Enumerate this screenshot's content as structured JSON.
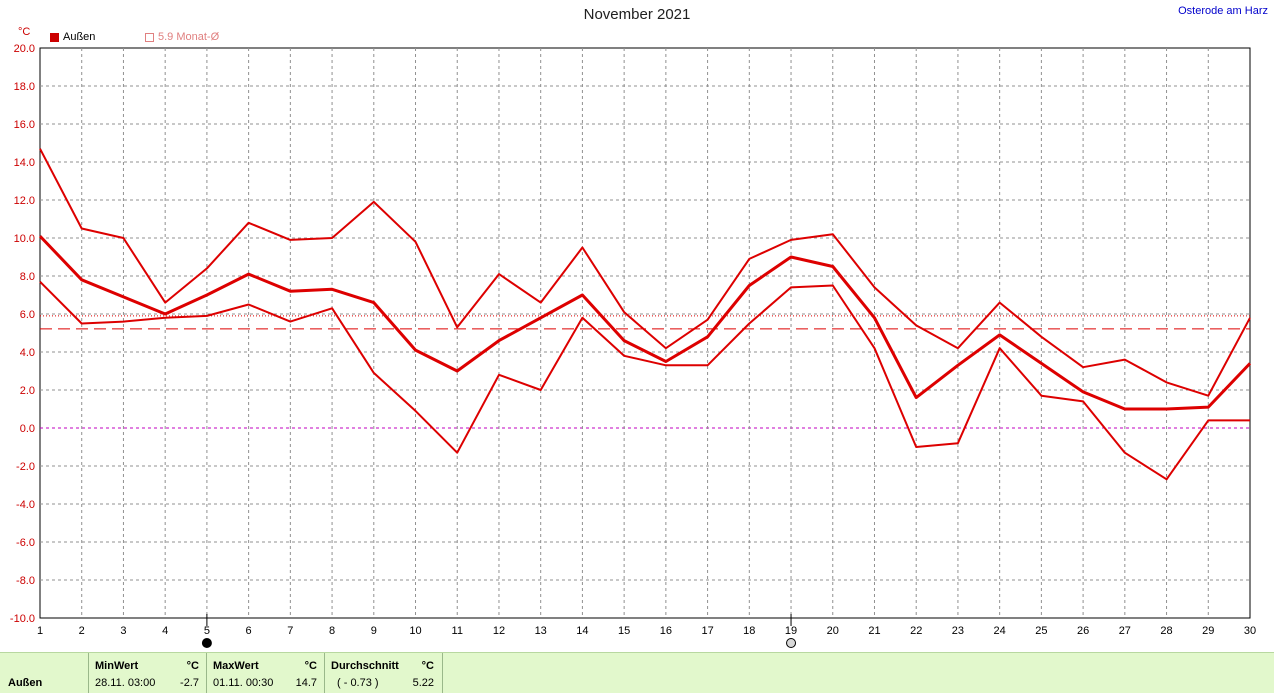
{
  "header": {
    "title": "November 2021",
    "location": "Osterode am Harz",
    "unit": "°C"
  },
  "legend": {
    "series_label": "Außen",
    "monthly_avg_label": "5.9 Monat-Ø"
  },
  "colors": {
    "series": "#dd0000",
    "avg_line": "#dd0000",
    "grid": "#909090",
    "zero_line": "#c000c0",
    "footer_bg": "#e2f8cc"
  },
  "chart_data": {
    "type": "line",
    "title": "November 2021",
    "ylabel": "°C",
    "ylim": [
      -10,
      20
    ],
    "xlim": [
      1,
      30
    ],
    "grid": true,
    "legend": "top-left",
    "x": [
      1,
      2,
      3,
      4,
      5,
      6,
      7,
      8,
      9,
      10,
      11,
      12,
      13,
      14,
      15,
      16,
      17,
      18,
      19,
      20,
      21,
      22,
      23,
      24,
      25,
      26,
      27,
      28,
      29,
      30
    ],
    "y_ticks": [
      "20.0",
      "18.0",
      "16.0",
      "14.0",
      "12.0",
      "10.0",
      "8.0",
      "6.0",
      "4.0",
      "2.0",
      "0.0",
      "-2.0",
      "-4.0",
      "-6.0",
      "-8.0",
      "-10.0"
    ],
    "series": [
      {
        "name": "max",
        "values": [
          14.7,
          10.5,
          10.0,
          6.6,
          8.4,
          10.8,
          9.9,
          10.0,
          11.9,
          9.8,
          5.3,
          8.1,
          6.6,
          9.5,
          6.1,
          4.2,
          5.7,
          8.9,
          9.9,
          10.2,
          7.4,
          5.4,
          4.2,
          6.6,
          4.8,
          3.2,
          3.6,
          2.4,
          1.7,
          5.8
        ],
        "thick": false
      },
      {
        "name": "avg",
        "values": [
          10.1,
          7.8,
          6.9,
          6.0,
          7.0,
          8.1,
          7.2,
          7.3,
          6.6,
          4.1,
          3.0,
          4.6,
          5.8,
          7.0,
          4.6,
          3.5,
          4.8,
          7.5,
          9.0,
          8.5,
          5.8,
          1.6,
          3.3,
          4.9,
          3.4,
          1.9,
          1.0,
          1.0,
          1.1,
          3.4
        ],
        "thick": true
      },
      {
        "name": "min",
        "values": [
          7.7,
          5.5,
          5.6,
          5.8,
          5.9,
          6.5,
          5.6,
          6.3,
          2.9,
          0.9,
          -1.3,
          2.8,
          2.0,
          5.8,
          3.8,
          3.3,
          3.3,
          5.5,
          7.4,
          7.5,
          4.2,
          -1.0,
          -0.8,
          4.2,
          1.7,
          1.4,
          -1.3,
          -2.7,
          0.4,
          0.4
        ],
        "thick": false
      }
    ],
    "reference_lines": [
      {
        "value": 5.9,
        "style": "dotted"
      },
      {
        "value": 5.22,
        "style": "dashed"
      }
    ],
    "moon_phases": [
      {
        "day": 5,
        "phase": "new"
      },
      {
        "day": 19,
        "phase": "full"
      }
    ]
  },
  "footer": {
    "row_label": "Außen",
    "min": {
      "header": "MinWert",
      "unit": "°C",
      "datetime": "28.11.  03:00",
      "value": "-2.7"
    },
    "max": {
      "header": "MaxWert",
      "unit": "°C",
      "datetime": "01.11.  00:30",
      "value": "14.7"
    },
    "avg": {
      "header": "Durchschnitt",
      "unit": "°C",
      "deviation": "( - 0.73 )",
      "value": "5.22"
    }
  }
}
